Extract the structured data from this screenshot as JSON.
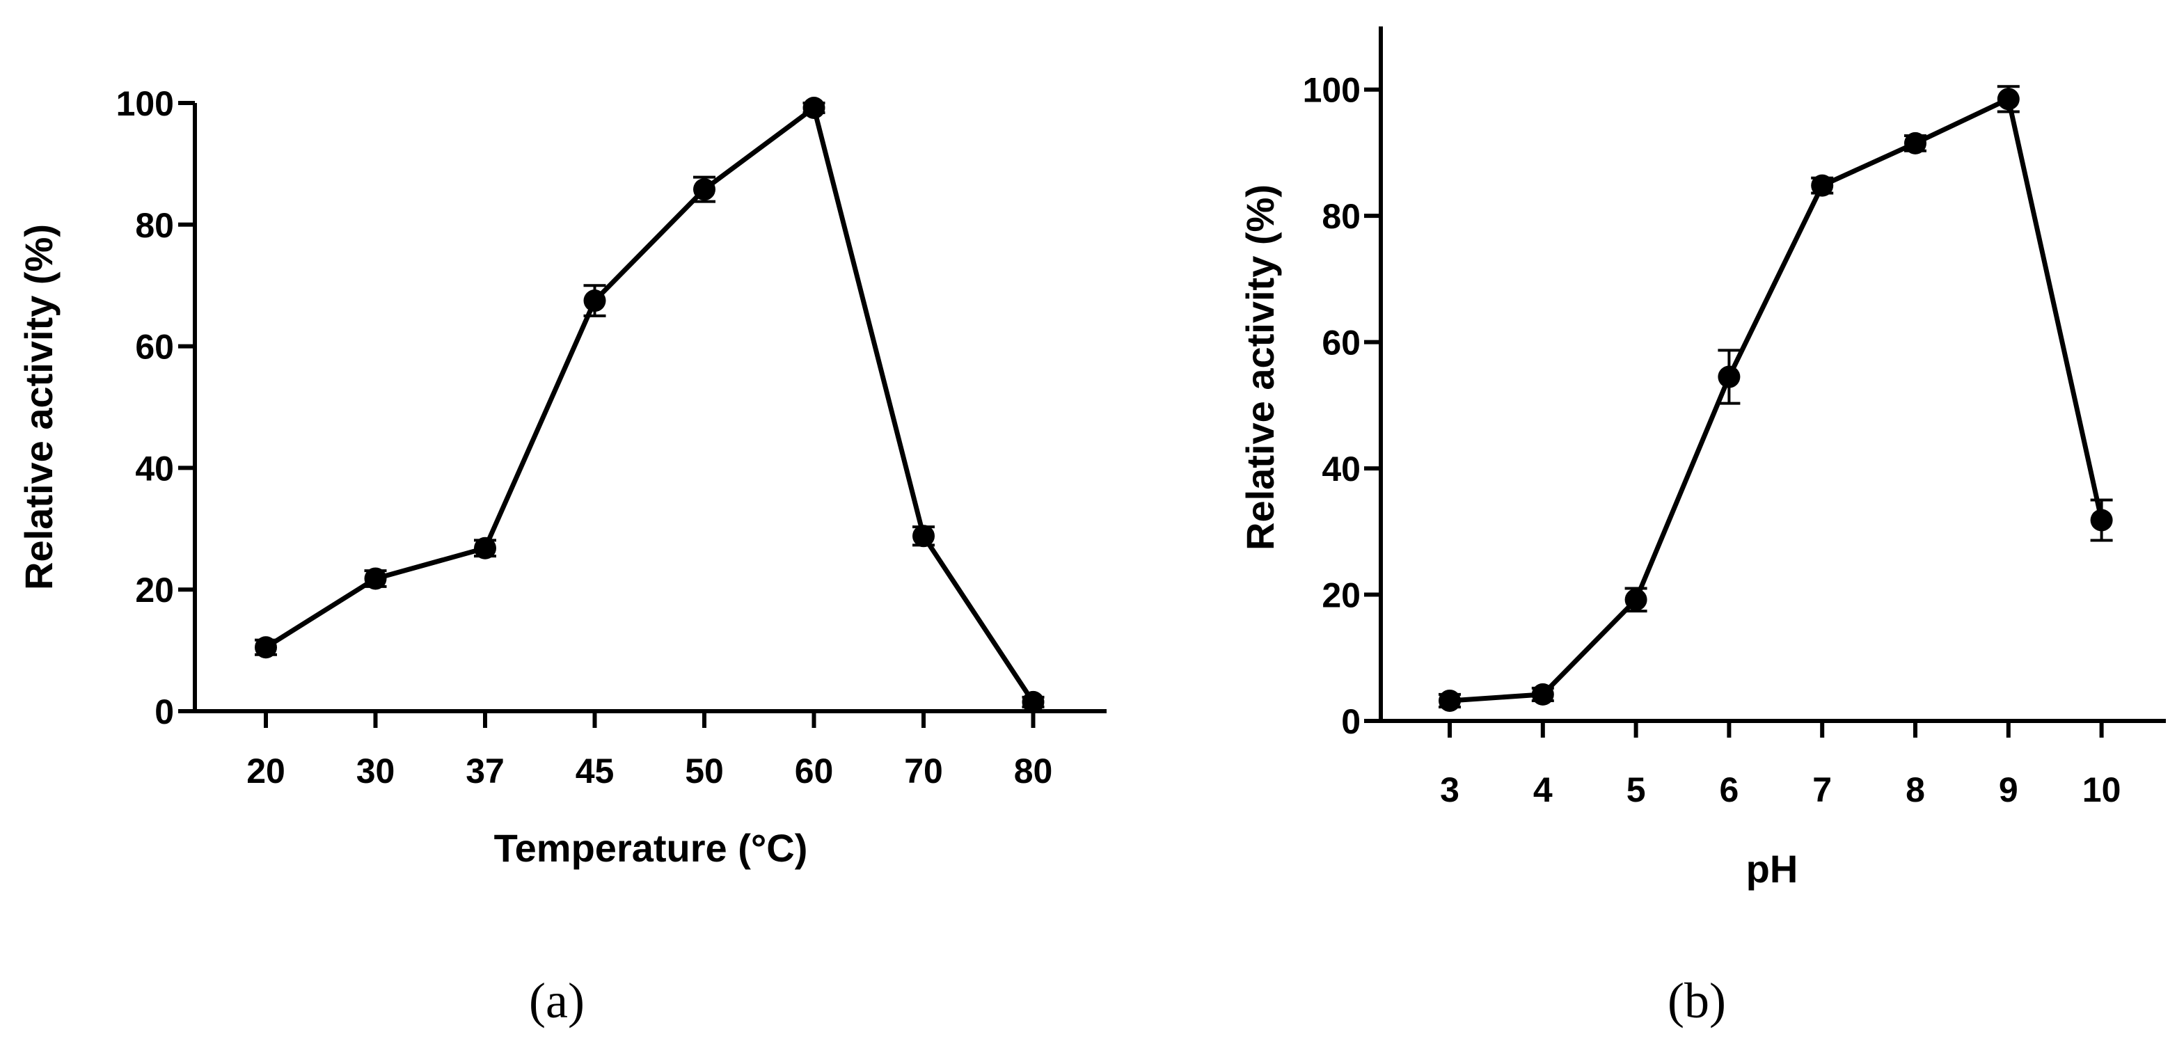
{
  "chart_data": [
    {
      "type": "line",
      "panel_label": "(a)",
      "title": "",
      "xlabel": "Temperature (°C)",
      "ylabel": "Relative activity (%)",
      "categories": [
        "20",
        "30",
        "37",
        "45",
        "50",
        "60",
        "70",
        "80"
      ],
      "series": [
        {
          "name": "Relative activity",
          "values": [
            10.5,
            21.8,
            26.8,
            67.5,
            85.8,
            99.2,
            28.8,
            1.5
          ],
          "errors": [
            1.2,
            1.3,
            1.3,
            2.5,
            2.0,
            0.8,
            1.5,
            0.8
          ]
        }
      ],
      "ylim": [
        0,
        100
      ],
      "yticks": [
        "0",
        "20",
        "40",
        "60",
        "80",
        "100"
      ],
      "grid": false,
      "color": "#000000"
    },
    {
      "type": "line",
      "panel_label": "(b)",
      "title": "",
      "xlabel": "pH",
      "ylabel": "Relative activity (%)",
      "categories": [
        "3",
        "4",
        "5",
        "6",
        "7",
        "8",
        "9",
        "10"
      ],
      "series": [
        {
          "name": "Relative activity",
          "values": [
            3.2,
            4.2,
            19.2,
            54.5,
            84.8,
            91.5,
            98.5,
            31.8
          ],
          "errors": [
            1.0,
            1.0,
            1.8,
            4.2,
            1.2,
            1.2,
            2.0,
            3.2
          ]
        }
      ],
      "ylim": [
        0,
        110
      ],
      "yticks": [
        "0",
        "20",
        "40",
        "60",
        "80",
        "100"
      ],
      "grid": false,
      "color": "#000000"
    }
  ]
}
